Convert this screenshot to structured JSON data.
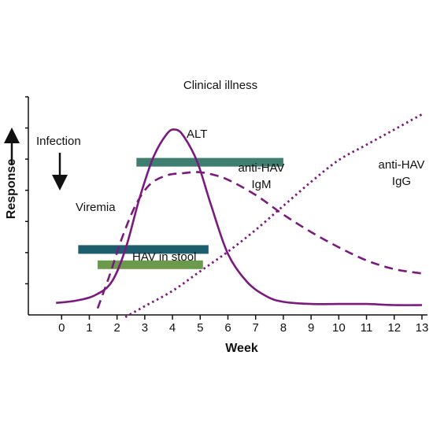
{
  "chart_data": {
    "type": "line",
    "xlabel": "Week",
    "ylabel": "Response",
    "xlim": [
      -1.2,
      13.2
    ],
    "ylim": [
      0,
      10
    ],
    "x_ticks": [
      0,
      1,
      2,
      3,
      4,
      5,
      6,
      7,
      8,
      9,
      10,
      11,
      12,
      13
    ],
    "y_tick_count": 7,
    "grid": false,
    "legend": "none",
    "colors": {
      "curve": "#7b1a7e",
      "clinical_illness": "#3f7f72",
      "viremia": "#1c5e6e",
      "hav_in_stool": "#6b9a4d"
    },
    "series": [
      {
        "name": "ALT",
        "style": "solid",
        "x": [
          -0.2,
          0.5,
          1.2,
          1.8,
          2.3,
          2.8,
          3.3,
          3.8,
          4.1,
          4.4,
          4.9,
          5.4,
          6.0,
          6.7,
          7.4,
          8.0,
          9.0,
          10.0,
          11.0,
          12.0,
          13.0
        ],
        "y": [
          0.55,
          0.65,
          0.9,
          1.5,
          3.0,
          5.3,
          7.2,
          8.3,
          8.5,
          8.2,
          7.0,
          5.0,
          2.8,
          1.5,
          0.85,
          0.6,
          0.5,
          0.5,
          0.5,
          0.45,
          0.45
        ]
      },
      {
        "name": "anti-HAV IgM",
        "style": "dashed",
        "x": [
          1.3,
          1.7,
          2.2,
          2.7,
          3.2,
          3.8,
          4.4,
          4.9,
          5.4,
          6.0,
          7.0,
          8.0,
          9.0,
          10.0,
          11.0,
          12.0,
          13.0
        ],
        "y": [
          0.3,
          1.7,
          3.6,
          5.1,
          6.0,
          6.4,
          6.5,
          6.55,
          6.45,
          6.2,
          5.5,
          4.6,
          3.8,
          3.1,
          2.5,
          2.1,
          1.9
        ]
      },
      {
        "name": "anti-HAV IgG",
        "style": "dotted",
        "x": [
          2.3,
          3.0,
          4.0,
          5.0,
          6.0,
          7.0,
          8.0,
          9.0,
          10.0,
          11.0,
          12.0,
          13.0
        ],
        "y": [
          -0.1,
          0.4,
          1.1,
          2.0,
          2.9,
          3.9,
          5.0,
          6.1,
          7.1,
          7.8,
          8.5,
          9.2
        ]
      }
    ],
    "bars": [
      {
        "label": "Clinical illness",
        "x_start": 2.7,
        "x_end": 8.0,
        "y": 7.0
      },
      {
        "label": "Viremia",
        "x_start": 0.6,
        "x_end": 5.3,
        "y": 3.0
      },
      {
        "label": "HAV in stool",
        "x_start": 1.3,
        "x_end": 5.1,
        "y": 2.3
      }
    ],
    "annotations": {
      "infection": "Infection",
      "alt": "ALT",
      "igm_line1": "anti-HAV",
      "igm_line2": "IgM",
      "igg_line1": "anti-HAV",
      "igg_line2": "IgG"
    }
  }
}
